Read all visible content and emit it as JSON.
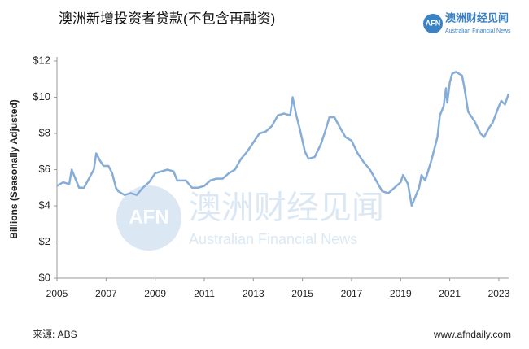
{
  "chart_data": {
    "type": "line",
    "title": "澳洲新增投资者贷款(不包含再融资)",
    "y_label": "Billions (Seasonally Adjusted)",
    "series": [
      {
        "color": "#86acd8",
        "x": [
          2005.0,
          2005.25,
          2005.5,
          2005.6,
          2005.75,
          2005.9,
          2006.1,
          2006.3,
          2006.5,
          2006.6,
          2006.75,
          2006.9,
          2007.1,
          2007.25,
          2007.4,
          2007.5,
          2007.75,
          2008.0,
          2008.25,
          2008.5,
          2008.75,
          2009.0,
          2009.25,
          2009.5,
          2009.75,
          2009.9,
          2010.25,
          2010.5,
          2010.75,
          2011.0,
          2011.25,
          2011.5,
          2011.75,
          2012.0,
          2012.25,
          2012.5,
          2012.75,
          2013.0,
          2013.25,
          2013.5,
          2013.75,
          2014.0,
          2014.25,
          2014.5,
          2014.6,
          2014.75,
          2014.9,
          2015.1,
          2015.25,
          2015.5,
          2015.75,
          2015.9,
          2016.1,
          2016.3,
          2016.5,
          2016.75,
          2017.0,
          2017.25,
          2017.5,
          2017.75,
          2018.0,
          2018.25,
          2018.5,
          2018.75,
          2019.0,
          2019.1,
          2019.3,
          2019.45,
          2019.6,
          2019.75,
          2019.85,
          2020.0,
          2020.25,
          2020.5,
          2020.6,
          2020.75,
          2020.85,
          2020.9,
          2021.0,
          2021.1,
          2021.25,
          2021.5,
          2021.6,
          2021.75,
          2022.0,
          2022.25,
          2022.4,
          2022.6,
          2022.75,
          2023.0,
          2023.1,
          2023.25,
          2023.4
        ],
        "values": [
          5.1,
          5.3,
          5.2,
          6.0,
          5.5,
          5.0,
          5.0,
          5.5,
          6.0,
          6.9,
          6.5,
          6.2,
          6.2,
          5.8,
          5.0,
          4.8,
          4.6,
          4.7,
          4.6,
          5.0,
          5.3,
          5.8,
          5.9,
          6.0,
          5.9,
          5.4,
          5.4,
          5.0,
          5.0,
          5.1,
          5.4,
          5.5,
          5.5,
          5.8,
          6.0,
          6.6,
          7.0,
          7.5,
          8.0,
          8.1,
          8.4,
          9.0,
          9.1,
          9.0,
          10.0,
          9.0,
          8.2,
          7.0,
          6.6,
          6.7,
          7.4,
          8.0,
          8.9,
          8.9,
          8.4,
          7.8,
          7.6,
          6.9,
          6.4,
          6.0,
          5.4,
          4.8,
          4.7,
          5.0,
          5.3,
          5.7,
          5.2,
          4.0,
          4.5,
          5.0,
          5.7,
          5.4,
          6.5,
          7.8,
          9.0,
          9.5,
          10.5,
          9.7,
          10.8,
          11.3,
          11.4,
          11.2,
          10.5,
          9.2,
          8.7,
          8.0,
          7.8,
          8.3,
          8.6,
          9.5,
          9.8,
          9.6,
          10.2
        ]
      }
    ],
    "xlim": [
      2005,
      2023.4
    ],
    "xticks": [
      2005,
      2007,
      2009,
      2011,
      2013,
      2015,
      2017,
      2019,
      2021,
      2023
    ],
    "ylim": [
      0,
      12
    ],
    "yticks": [
      {
        "value": 0,
        "label": "$0"
      },
      {
        "value": 2,
        "label": "$2"
      },
      {
        "value": 4,
        "label": "$4"
      },
      {
        "value": 6,
        "label": "$6"
      },
      {
        "value": 8,
        "label": "$8"
      },
      {
        "value": 10,
        "label": "$10"
      },
      {
        "value": 12,
        "label": "$12"
      }
    ],
    "grid": false
  },
  "logo": {
    "mark": "AFN",
    "name": "澳洲财经见闻",
    "tagline": "Australian Financial News"
  },
  "watermark": {
    "mark": "AFN",
    "name": "澳洲财经见闻",
    "tagline": "Australian Financial News"
  },
  "source": "来源: ABS",
  "website": "www.afndaily.com"
}
